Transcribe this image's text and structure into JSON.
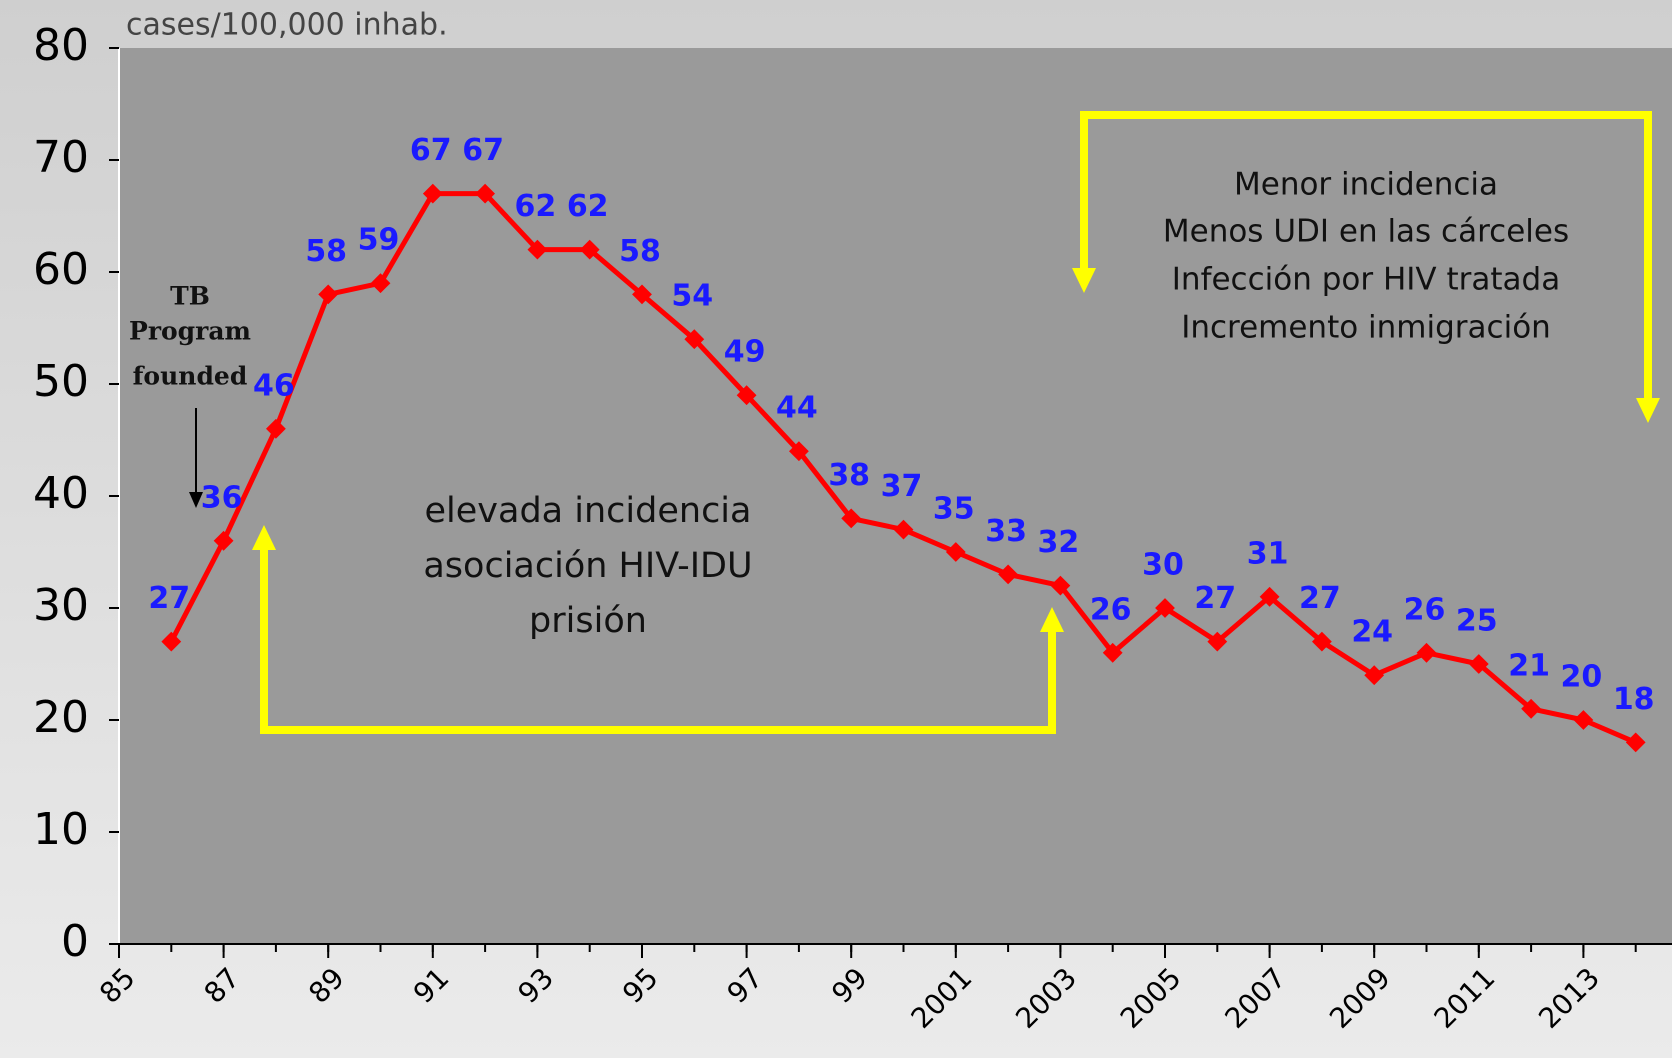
{
  "chart_data": {
    "type": "line",
    "title": "cases/100,000 inhab.",
    "x": [
      1986,
      1987,
      1988,
      1989,
      1990,
      1991,
      1992,
      1993,
      1994,
      1995,
      1996,
      1997,
      1998,
      1999,
      2000,
      2001,
      2002,
      2003,
      2004,
      2005,
      2006,
      2007,
      2008,
      2009,
      2010,
      2011,
      2012,
      2013,
      2014
    ],
    "values": [
      27,
      36,
      46,
      58,
      59,
      67,
      67,
      62,
      62,
      58,
      54,
      49,
      44,
      38,
      37,
      35,
      33,
      32,
      26,
      30,
      27,
      31,
      27,
      24,
      26,
      25,
      21,
      20,
      18
    ],
    "color": "#ff0000",
    "label_color": "#1a1aff",
    "xlim": [
      1985,
      2015
    ],
    "xticks": [
      {
        "value": 1985,
        "label": "85"
      },
      {
        "value": 1987,
        "label": "87"
      },
      {
        "value": 1989,
        "label": "89"
      },
      {
        "value": 1991,
        "label": "91"
      },
      {
        "value": 1993,
        "label": "93"
      },
      {
        "value": 1995,
        "label": "95"
      },
      {
        "value": 1997,
        "label": "97"
      },
      {
        "value": 1999,
        "label": "99"
      },
      2001,
      2003,
      2005,
      2007,
      2009,
      2011,
      2013
    ],
    "ylim": [
      0,
      80
    ],
    "yticks": [
      0,
      10,
      20,
      30,
      40,
      50,
      60,
      70,
      80
    ],
    "grid": false,
    "annotations": [
      [
        "TB",
        "Program",
        "founded"
      ],
      [
        "elevada incidencia",
        "asociación HIV-IDU",
        "prisión"
      ],
      [
        "Menor incidencia",
        "Menos UDI en las cárceles",
        "Infección por HIV tratada",
        "Incremento inmigración"
      ]
    ]
  }
}
